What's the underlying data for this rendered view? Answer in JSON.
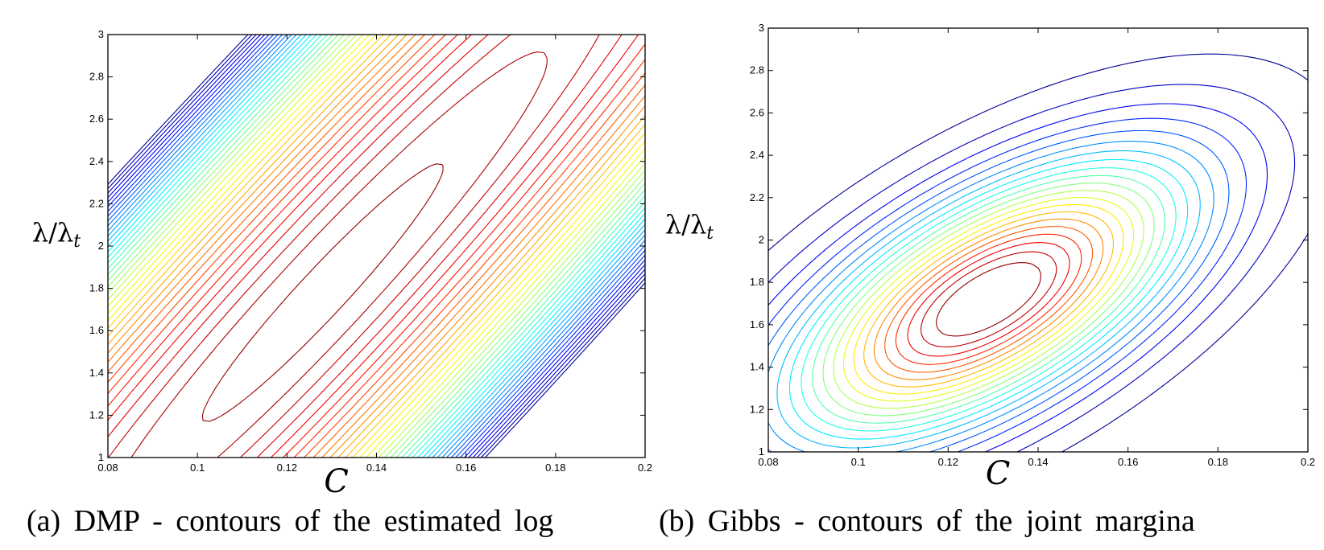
{
  "chart_data": [
    {
      "type": "contour",
      "panel": "a",
      "caption": "(a) DMP - contours of the estimated log",
      "xlabel": "C",
      "ylabel": "λ/λ",
      "ylabel_sub": "t",
      "xlim": [
        0.08,
        0.2
      ],
      "ylim": [
        1,
        3
      ],
      "xticks": [
        0.08,
        0.1,
        0.12,
        0.14,
        0.16,
        0.18,
        0.2
      ],
      "xtick_labels": [
        "0.08",
        "0.1",
        "0.12",
        "0.14",
        "0.16",
        "0.18",
        "0.2"
      ],
      "yticks": [
        1,
        1.2,
        1.4,
        1.6,
        1.8,
        2,
        2.2,
        2.4,
        2.6,
        2.8,
        3
      ],
      "ytick_labels": [
        "1",
        "1.2",
        "1.4",
        "1.6",
        "1.8",
        "2",
        "2.2",
        "2.4",
        "2.6",
        "2.8",
        "3"
      ],
      "colormap": "jet",
      "surface": {
        "peak_x": 0.128,
        "peak_y": 1.78,
        "sigma_along": 0.9,
        "sigma_across": 0.115,
        "angle_deg": 54,
        "x_scale": 0.06,
        "y_scale": 1.0,
        "kind": "log-likelihood"
      },
      "num_levels": 40,
      "level_range": [
        -34,
        -0.35
      ],
      "grid": false,
      "legend": "none"
    },
    {
      "type": "contour",
      "panel": "b",
      "caption": "(b) Gibbs - contours of the joint margina",
      "xlabel": "C",
      "ylabel": "λ/λ",
      "ylabel_sub": "t",
      "xlim": [
        0.08,
        0.2
      ],
      "ylim": [
        1,
        3
      ],
      "xticks": [
        0.08,
        0.1,
        0.12,
        0.14,
        0.16,
        0.18,
        0.2
      ],
      "xtick_labels": [
        "0.08",
        "0.1",
        "0.12",
        "0.14",
        "0.16",
        "0.18",
        "0.2"
      ],
      "yticks": [
        1,
        1.2,
        1.4,
        1.6,
        1.8,
        2,
        2.2,
        2.4,
        2.6,
        2.8,
        3
      ],
      "ytick_labels": [
        "1",
        "1.2",
        "1.4",
        "1.6",
        "1.8",
        "2",
        "2.2",
        "2.4",
        "2.6",
        "2.8",
        "3"
      ],
      "colormap": "jet",
      "surface": {
        "peak_x": 0.129,
        "peak_y": 1.72,
        "sigma_along": 0.62,
        "sigma_across": 0.29,
        "angle_deg": 40,
        "x_scale": 0.06,
        "y_scale": 1.0,
        "kind": "density"
      },
      "num_levels": 21,
      "level_range": [
        0.04,
        0.93
      ],
      "grid": false,
      "legend": "none"
    }
  ]
}
